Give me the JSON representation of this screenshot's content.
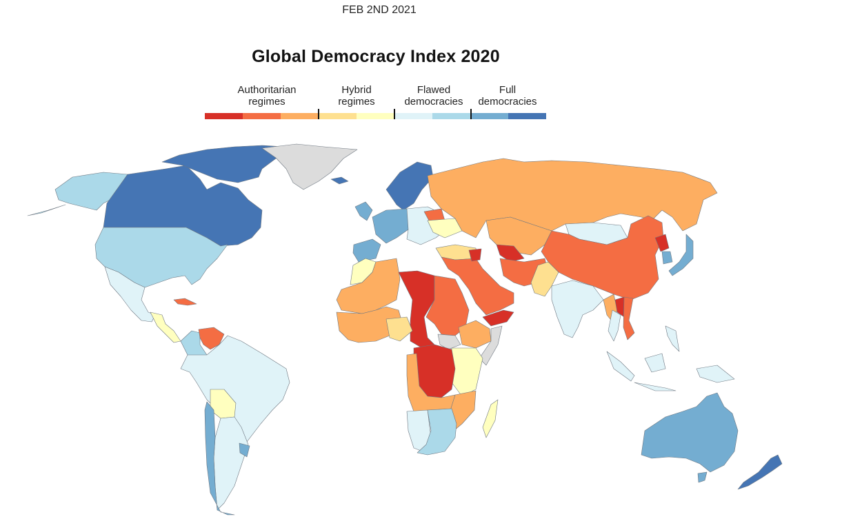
{
  "header": {
    "date": "FEB 2ND 2021",
    "title": "Global Democracy Index 2020"
  },
  "legend": {
    "categories": [
      {
        "label_line1": "Authoritarian",
        "label_line2": "regimes",
        "colors": [
          "#d73027",
          "#f46d43",
          "#fdae61"
        ]
      },
      {
        "label_line1": "Hybrid",
        "label_line2": "regimes",
        "colors": [
          "#fee090",
          "#ffffbf"
        ]
      },
      {
        "label_line1": "Flawed",
        "label_line2": "democracies",
        "colors": [
          "#e0f3f8",
          "#abd9e9"
        ]
      },
      {
        "label_line1": "Full",
        "label_line2": "democracies",
        "colors": [
          "#74add1",
          "#4575b4"
        ]
      }
    ],
    "no_data_color": "#dcdcdc"
  },
  "map": {
    "regions": [
      {
        "name": "alaska",
        "cls": "flawed_2"
      },
      {
        "name": "canada",
        "cls": "full_2"
      },
      {
        "name": "canada-arctic-islands",
        "cls": "full_2"
      },
      {
        "name": "greenland",
        "cls": "no_data"
      },
      {
        "name": "united-states",
        "cls": "flawed_2"
      },
      {
        "name": "mexico",
        "cls": "flawed_1"
      },
      {
        "name": "central-america",
        "cls": "hybrid_2"
      },
      {
        "name": "cuba",
        "cls": "auth_2"
      },
      {
        "name": "venezuela",
        "cls": "auth_2"
      },
      {
        "name": "colombia",
        "cls": "flawed_2"
      },
      {
        "name": "brazil",
        "cls": "flawed_1"
      },
      {
        "name": "bolivia",
        "cls": "hybrid_2"
      },
      {
        "name": "chile",
        "cls": "full_1"
      },
      {
        "name": "uruguay",
        "cls": "full_1"
      },
      {
        "name": "iceland",
        "cls": "full_2"
      },
      {
        "name": "scandinavia",
        "cls": "full_2"
      },
      {
        "name": "western-europe",
        "cls": "full_1"
      },
      {
        "name": "eastern-europe",
        "cls": "flawed_1"
      },
      {
        "name": "ukraine",
        "cls": "hybrid_2"
      },
      {
        "name": "belarus",
        "cls": "auth_2"
      },
      {
        "name": "turkey",
        "cls": "hybrid_1"
      },
      {
        "name": "russia",
        "cls": "auth_3"
      },
      {
        "name": "central-asia",
        "cls": "auth_3"
      },
      {
        "name": "turkmenistan",
        "cls": "auth_1"
      },
      {
        "name": "mongolia",
        "cls": "flawed_1"
      },
      {
        "name": "china",
        "cls": "auth_2"
      },
      {
        "name": "north-korea",
        "cls": "auth_1"
      },
      {
        "name": "south-korea",
        "cls": "full_1"
      },
      {
        "name": "japan",
        "cls": "full_1"
      },
      {
        "name": "middle-east",
        "cls": "auth_2"
      },
      {
        "name": "syria",
        "cls": "auth_1"
      },
      {
        "name": "yemen",
        "cls": "auth_1"
      },
      {
        "name": "iran",
        "cls": "auth_2"
      },
      {
        "name": "pakistan",
        "cls": "hybrid_1"
      },
      {
        "name": "india",
        "cls": "flawed_1"
      },
      {
        "name": "myanmar",
        "cls": "auth_3"
      },
      {
        "name": "laos",
        "cls": "auth_1"
      },
      {
        "name": "vietnam",
        "cls": "auth_2"
      },
      {
        "name": "thailand",
        "cls": "flawed_1"
      },
      {
        "name": "indonesia",
        "cls": "flawed_1"
      },
      {
        "name": "philippines",
        "cls": "flawed_1"
      },
      {
        "name": "papua-new-guinea",
        "cls": "flawed_1"
      },
      {
        "name": "north-africa-west",
        "cls": "auth_3"
      },
      {
        "name": "morocco",
        "cls": "hybrid_2"
      },
      {
        "name": "libya-chad-car",
        "cls": "auth_1"
      },
      {
        "name": "egypt-sudan",
        "cls": "auth_2"
      },
      {
        "name": "west-africa",
        "cls": "auth_3"
      },
      {
        "name": "nigeria",
        "cls": "hybrid_1"
      },
      {
        "name": "ethiopia",
        "cls": "auth_3"
      },
      {
        "name": "somalia",
        "cls": "no_data"
      },
      {
        "name": "south-sudan",
        "cls": "no_data"
      },
      {
        "name": "east-africa",
        "cls": "hybrid_2"
      },
      {
        "name": "drc",
        "cls": "auth_1"
      },
      {
        "name": "angola-zambia",
        "cls": "auth_3"
      },
      {
        "name": "mozambique-zimbabwe",
        "cls": "auth_3"
      },
      {
        "name": "madagascar",
        "cls": "hybrid_2"
      },
      {
        "name": "namibia",
        "cls": "flawed_1"
      },
      {
        "name": "south-africa-botswana",
        "cls": "flawed_2"
      },
      {
        "name": "australia",
        "cls": "full_1"
      },
      {
        "name": "new-zealand",
        "cls": "full_2"
      }
    ]
  }
}
